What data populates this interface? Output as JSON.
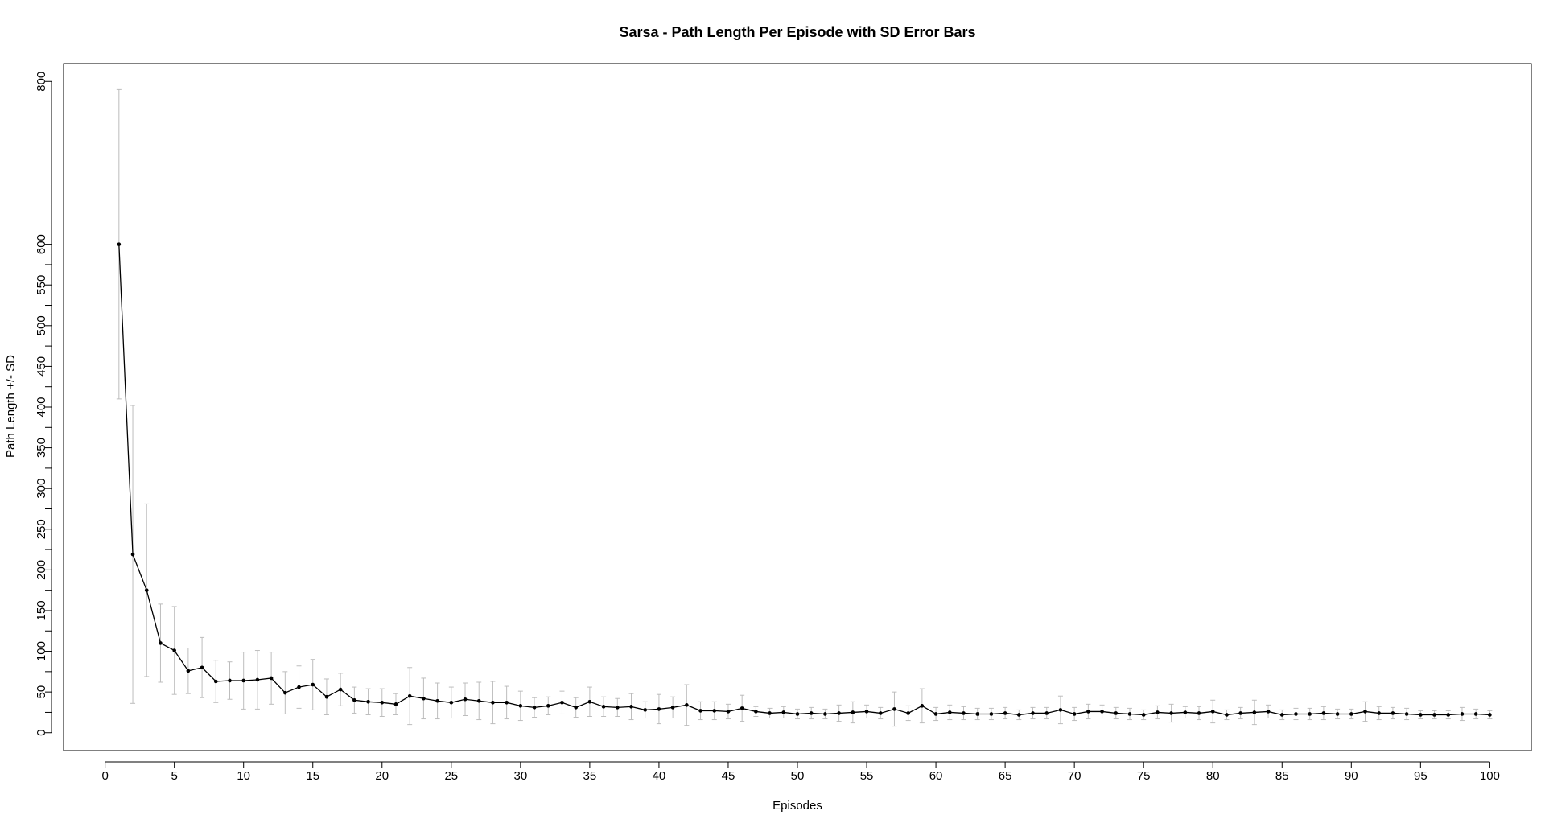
{
  "chart_data": {
    "type": "line",
    "title": "Sarsa - Path Length Per Episode with SD Error Bars",
    "xlabel": "Episodes",
    "ylabel": "Path Length +/- SD",
    "xlim": [
      -3,
      103
    ],
    "ylim": [
      -22,
      822
    ],
    "x_ticks": [
      0,
      5,
      10,
      15,
      20,
      25,
      30,
      35,
      40,
      45,
      50,
      55,
      60,
      65,
      70,
      75,
      80,
      85,
      90,
      95,
      100
    ],
    "y_ticks": [
      0,
      25,
      50,
      75,
      100,
      125,
      150,
      175,
      200,
      225,
      250,
      275,
      300,
      325,
      350,
      375,
      400,
      425,
      450,
      475,
      500,
      525,
      550,
      575,
      600,
      800
    ],
    "y_tick_labels": [
      "0",
      "",
      "50",
      "",
      "100",
      "",
      "150",
      "",
      "200",
      "",
      "250",
      "",
      "300",
      "",
      "350",
      "",
      "400",
      "",
      "450",
      "",
      "500",
      "",
      "550",
      "",
      "600",
      "800"
    ],
    "grid": false,
    "legend": "none",
    "series": [
      {
        "line_color": "#000000",
        "error_bar_color": "#bdbdbd",
        "x": [
          1,
          2,
          3,
          4,
          5,
          6,
          7,
          8,
          9,
          10,
          11,
          12,
          13,
          14,
          15,
          16,
          17,
          18,
          19,
          20,
          21,
          22,
          23,
          24,
          25,
          26,
          27,
          28,
          29,
          30,
          31,
          32,
          33,
          34,
          35,
          36,
          37,
          38,
          39,
          40,
          41,
          42,
          43,
          44,
          45,
          46,
          47,
          48,
          49,
          50,
          51,
          52,
          53,
          54,
          55,
          56,
          57,
          58,
          59,
          60,
          61,
          62,
          63,
          64,
          65,
          66,
          67,
          68,
          69,
          70,
          71,
          72,
          73,
          74,
          75,
          76,
          77,
          78,
          79,
          80,
          81,
          82,
          83,
          84,
          85,
          86,
          87,
          88,
          89,
          90,
          91,
          92,
          93,
          94,
          95,
          96,
          97,
          98,
          99,
          100
        ],
        "y": [
          600,
          219,
          175,
          110,
          101,
          76,
          80,
          63,
          64,
          64,
          65,
          67,
          49,
          56,
          59,
          44,
          53,
          40,
          38,
          37,
          35,
          45,
          42,
          39,
          37,
          41,
          39,
          37,
          37,
          33,
          31,
          33,
          37,
          31,
          38,
          32,
          31,
          32,
          28,
          29,
          31,
          34,
          27,
          27,
          26,
          30,
          26,
          24,
          25,
          23,
          24,
          23,
          24,
          25,
          26,
          24,
          29,
          24,
          33,
          23,
          25,
          24,
          23,
          23,
          24,
          22,
          24,
          24,
          28,
          23,
          26,
          26,
          24,
          23,
          22,
          25,
          24,
          25,
          24,
          26,
          22,
          24,
          25,
          26,
          22,
          23,
          23,
          24,
          23,
          23,
          26,
          24,
          24,
          23,
          22,
          22,
          22,
          23,
          23,
          22
        ],
        "sd": [
          190,
          183,
          106,
          48,
          54,
          28,
          37,
          26,
          23,
          35,
          36,
          32,
          26,
          26,
          31,
          22,
          20,
          16,
          16,
          17,
          13,
          35,
          25,
          22,
          19,
          20,
          23,
          26,
          20,
          18,
          12,
          11,
          14,
          12,
          18,
          12,
          11,
          16,
          10,
          18,
          13,
          25,
          11,
          11,
          9,
          16,
          6,
          6,
          7,
          6,
          7,
          6,
          10,
          13,
          8,
          7,
          21,
          9,
          21,
          8,
          9,
          8,
          7,
          7,
          7,
          6,
          7,
          7,
          17,
          8,
          9,
          8,
          7,
          7,
          6,
          8,
          11,
          7,
          8,
          14,
          6,
          7,
          15,
          8,
          6,
          7,
          7,
          8,
          6,
          6,
          12,
          8,
          7,
          7,
          5,
          5,
          5,
          8,
          6,
          5
        ]
      }
    ]
  }
}
